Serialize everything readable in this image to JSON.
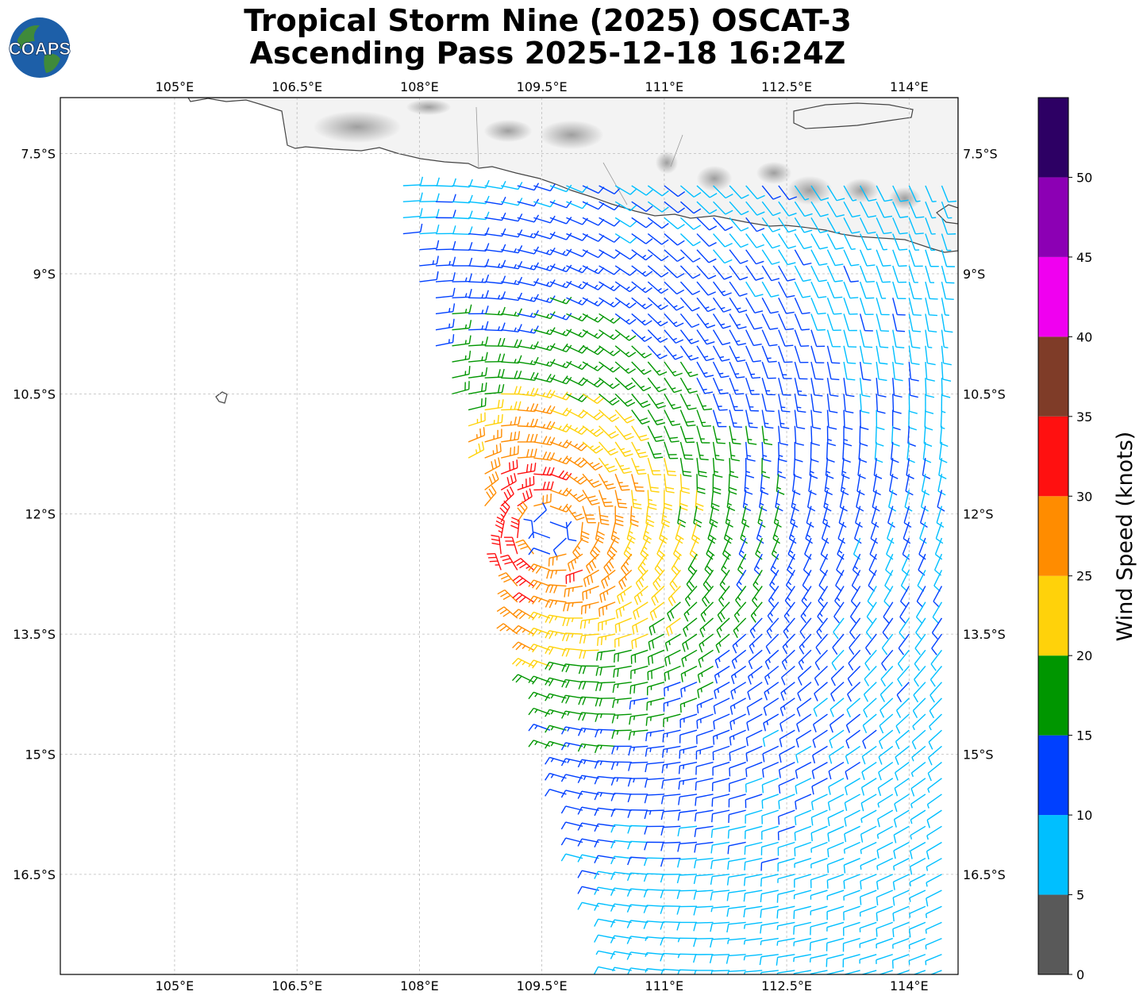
{
  "title": {
    "line1": "Tropical Storm Nine (2025) OSCAT-3",
    "line2": "Ascending Pass 2025-12-18 16:24Z"
  },
  "logo": {
    "text": "COAPS",
    "icon": "globe-icon"
  },
  "map": {
    "lon_range": [
      103.6,
      114.6
    ],
    "lat_range": [
      -17.75,
      -6.8
    ],
    "lon_ticks": [
      "105°E",
      "106.5°E",
      "108°E",
      "109.5°E",
      "111°E",
      "112.5°E",
      "114°E"
    ],
    "lon_tick_values": [
      105,
      106.5,
      108,
      109.5,
      111,
      112.5,
      114
    ],
    "lat_ticks": [
      "7.5°S",
      "9°S",
      "10.5°S",
      "12°S",
      "13.5°S",
      "15°S",
      "16.5°S"
    ],
    "lat_tick_values": [
      -7.5,
      -9,
      -10.5,
      -12,
      -13.5,
      -15,
      -16.5
    ],
    "storm_center": {
      "lon": 109.6,
      "lat": -12.2
    },
    "land": "Java island (top) and Bali, Christmas Island (left)",
    "gridlines": true
  },
  "colorbar": {
    "label": "Wind Speed (knots)",
    "ticks": [
      "0",
      "5",
      "10",
      "15",
      "20",
      "25",
      "30",
      "35",
      "40",
      "45",
      "50"
    ],
    "bins": [
      {
        "from": 0,
        "to": 5,
        "color": "#595959"
      },
      {
        "from": 5,
        "to": 10,
        "color": "#00bfff"
      },
      {
        "from": 10,
        "to": 15,
        "color": "#0040ff"
      },
      {
        "from": 15,
        "to": 20,
        "color": "#009600"
      },
      {
        "from": 20,
        "to": 25,
        "color": "#ffd20a"
      },
      {
        "from": 25,
        "to": 30,
        "color": "#ff8c00"
      },
      {
        "from": 30,
        "to": 35,
        "color": "#ff1010"
      },
      {
        "from": 35,
        "to": 40,
        "color": "#7f3c28"
      },
      {
        "from": 40,
        "to": 45,
        "color": "#f000f0"
      },
      {
        "from": 45,
        "to": 50,
        "color": "#8c00b4"
      },
      {
        "from": 50,
        "to": 55,
        "color": "#2d0064"
      }
    ]
  }
}
